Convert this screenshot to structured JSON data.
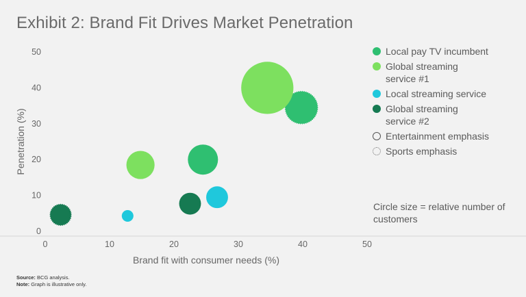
{
  "title": "Exhibit 2: Brand Fit Drives Market Penetration",
  "chart_data": {
    "type": "scatter",
    "subtype": "bubble",
    "xlabel": "Brand fit with consumer needs (%)",
    "ylabel": "Penetration (%)",
    "xlim": [
      0,
      50
    ],
    "ylim": [
      0,
      50
    ],
    "xticks": [
      "0",
      "10",
      "20",
      "30",
      "40",
      "50"
    ],
    "yticks": [
      "0",
      "10",
      "20",
      "30",
      "40",
      "50"
    ],
    "xtick_values": [
      0,
      10,
      20,
      30,
      40,
      50
    ],
    "ytick_values": [
      0,
      10,
      20,
      30,
      40,
      50
    ],
    "series": [
      {
        "name": "Local pay TV incumbent",
        "color": "#2fbf71",
        "points": [
          {
            "x": 24.5,
            "y": 20,
            "size": 4,
            "emphasis": "entertainment"
          },
          {
            "x": 39.8,
            "y": 34.5,
            "size": 5,
            "emphasis": "sports"
          }
        ]
      },
      {
        "name": "Global streaming service #1",
        "color": "#7de05f",
        "points": [
          {
            "x": 34.5,
            "y": 40,
            "size": 12,
            "emphasis": "entertainment"
          },
          {
            "x": 14.8,
            "y": 18.5,
            "size": 3.5,
            "emphasis": "entertainment"
          }
        ]
      },
      {
        "name": "Local streaming service",
        "color": "#1fc8dc",
        "points": [
          {
            "x": 26.7,
            "y": 9.5,
            "size": 2.1,
            "emphasis": "entertainment"
          },
          {
            "x": 12.8,
            "y": 4.3,
            "size": 0.6,
            "emphasis": "entertainment"
          }
        ]
      },
      {
        "name": "Global streaming service #2",
        "color": "#167a52",
        "points": [
          {
            "x": 22.5,
            "y": 7.7,
            "size": 2.1,
            "emphasis": "entertainment"
          },
          {
            "x": 2.4,
            "y": 4.6,
            "size": 2.2,
            "emphasis": "sports"
          }
        ]
      }
    ]
  },
  "legend": {
    "items": [
      {
        "label": "Local pay TV incumbent",
        "color": "#2fbf71"
      },
      {
        "label": "Global streaming\nservice #1",
        "color": "#7de05f"
      },
      {
        "label": "Local streaming service",
        "color": "#1fc8dc"
      },
      {
        "label": "Global streaming\nservice #2",
        "color": "#167a52"
      }
    ],
    "entertainment_label": "Entertainment emphasis",
    "sports_label": "Sports emphasis"
  },
  "size_note": "Circle size = relative number of customers",
  "footnotes": {
    "source_label": "Source:",
    "source_text": "BCG analysis.",
    "note_label": "Note:",
    "note_text": "Graph is illustrative only."
  }
}
